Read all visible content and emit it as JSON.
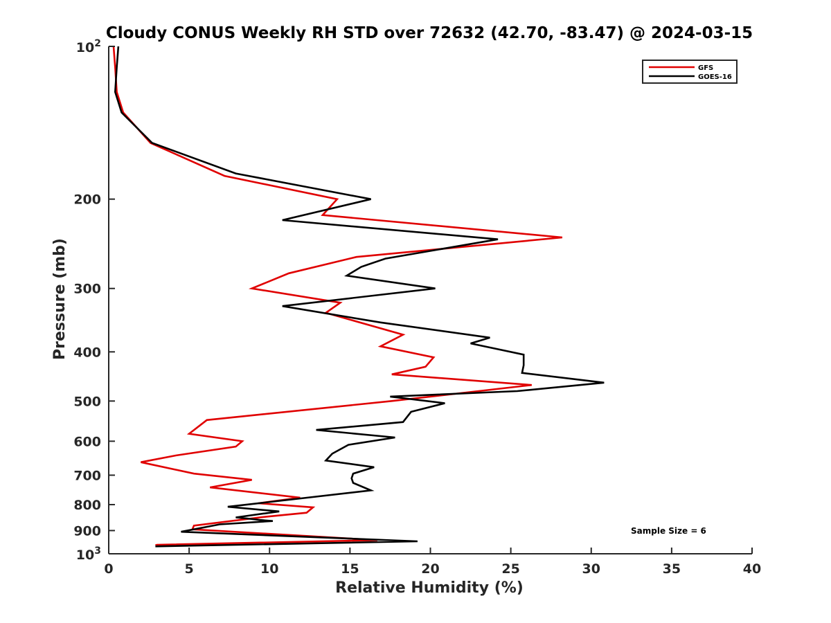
{
  "chart_data": {
    "type": "line",
    "title": "Cloudy CONUS Weekly RH STD over 72632 (42.70, -83.47) @ 2024-03-15",
    "xlabel": "Relative Humidity (%)",
    "ylabel": "Pressure (mb)",
    "xlim": [
      0,
      40
    ],
    "ylim": [
      1000,
      100
    ],
    "y_scale": "log",
    "y_reversed": true,
    "grid": false,
    "legend_position": "top-right",
    "x_ticks": [
      0,
      5,
      10,
      15,
      20,
      25,
      30,
      35,
      40
    ],
    "x_tick_labels": [
      "0",
      "5",
      "10",
      "15",
      "20",
      "25",
      "30",
      "35",
      "40"
    ],
    "y_ticks": [
      200,
      300,
      400,
      500,
      600,
      700,
      800,
      900
    ],
    "y_tick_labels": [
      "200",
      "300",
      "400",
      "500",
      "600",
      "700",
      "800",
      "900"
    ],
    "y_ticks_pow": [
      {
        "value": 100,
        "base": "10",
        "exp": "2"
      },
      {
        "value": 1000,
        "base": "10",
        "exp": "3"
      }
    ],
    "series": [
      {
        "name": "GFS",
        "color": "#e00000",
        "points": [
          [
            0.3,
            100
          ],
          [
            0.4,
            110
          ],
          [
            0.5,
            123
          ],
          [
            0.9,
            135
          ],
          [
            2.6,
            155
          ],
          [
            7.2,
            180
          ],
          [
            14.2,
            200
          ],
          [
            13.3,
            215
          ],
          [
            28.2,
            238
          ],
          [
            15.4,
            260
          ],
          [
            11.2,
            280
          ],
          [
            8.9,
            300
          ],
          [
            14.4,
            320
          ],
          [
            13.5,
            335
          ],
          [
            18.3,
            370
          ],
          [
            16.9,
            390
          ],
          [
            20.2,
            410
          ],
          [
            19.7,
            428
          ],
          [
            17.6,
            443
          ],
          [
            26.3,
            465
          ],
          [
            17.6,
            500
          ],
          [
            6.1,
            545
          ],
          [
            5.0,
            580
          ],
          [
            8.3,
            600
          ],
          [
            7.9,
            615
          ],
          [
            4.2,
            640
          ],
          [
            2.0,
            660
          ],
          [
            5.3,
            695
          ],
          [
            8.9,
            715
          ],
          [
            6.3,
            740
          ],
          [
            11.9,
            775
          ],
          [
            9.3,
            795
          ],
          [
            12.7,
            810
          ],
          [
            12.3,
            830
          ],
          [
            9.8,
            845
          ],
          [
            5.3,
            880
          ],
          [
            5.2,
            895
          ],
          [
            16.7,
            940
          ],
          [
            3.0,
            960
          ],
          [
            2.9,
            962
          ]
        ]
      },
      {
        "name": "GOES-16",
        "color": "#000000",
        "points": [
          [
            0.6,
            100
          ],
          [
            0.5,
            110
          ],
          [
            0.4,
            123
          ],
          [
            0.8,
            135
          ],
          [
            2.7,
            155
          ],
          [
            7.9,
            178
          ],
          [
            16.3,
            200
          ],
          [
            10.8,
            220
          ],
          [
            24.2,
            240
          ],
          [
            17.2,
            262
          ],
          [
            15.7,
            272
          ],
          [
            14.8,
            283
          ],
          [
            20.3,
            300
          ],
          [
            10.8,
            325
          ],
          [
            16.9,
            350
          ],
          [
            23.7,
            375
          ],
          [
            22.5,
            385
          ],
          [
            25.8,
            405
          ],
          [
            25.8,
            425
          ],
          [
            25.7,
            440
          ],
          [
            30.8,
            460
          ],
          [
            25.4,
            478
          ],
          [
            17.5,
            490
          ],
          [
            20.9,
            505
          ],
          [
            18.8,
            525
          ],
          [
            18.3,
            550
          ],
          [
            12.9,
            570
          ],
          [
            17.8,
            590
          ],
          [
            14.9,
            610
          ],
          [
            13.9,
            635
          ],
          [
            13.5,
            655
          ],
          [
            16.5,
            675
          ],
          [
            15.2,
            695
          ],
          [
            15.1,
            710
          ],
          [
            15.2,
            725
          ],
          [
            16.3,
            750
          ],
          [
            7.4,
            808
          ],
          [
            10.6,
            825
          ],
          [
            7.9,
            848
          ],
          [
            8.6,
            852
          ],
          [
            9.4,
            858
          ],
          [
            10.2,
            862
          ],
          [
            6.9,
            875
          ],
          [
            4.5,
            905
          ],
          [
            19.2,
            945
          ],
          [
            2.9,
            967
          ]
        ]
      }
    ],
    "annotations": [
      "Sample Size = 6"
    ]
  }
}
